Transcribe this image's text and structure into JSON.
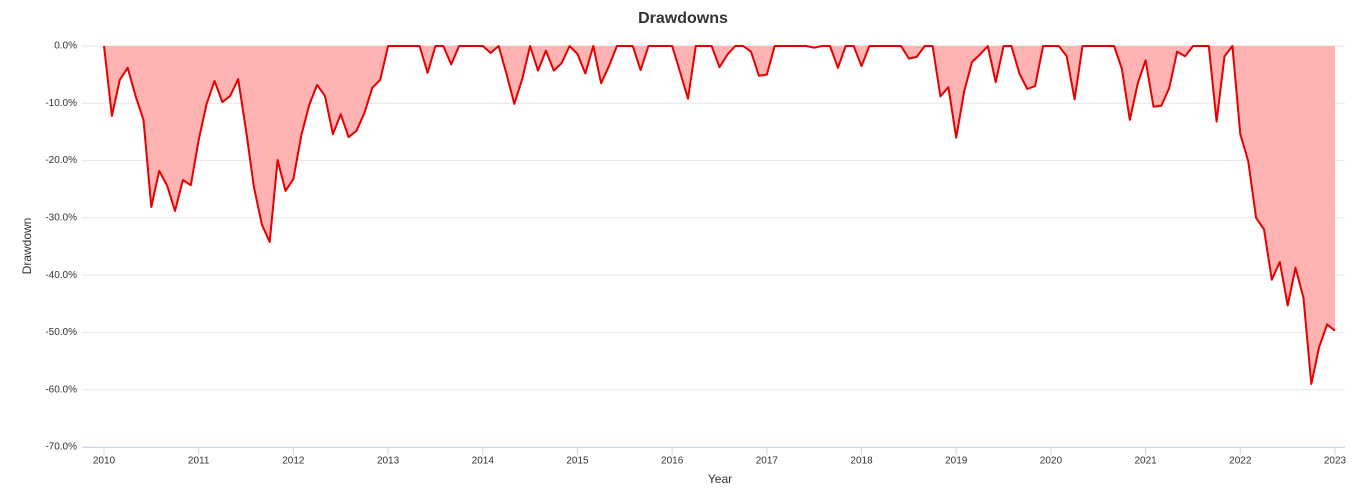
{
  "chart_data": {
    "type": "area",
    "title": "Drawdowns",
    "xlabel": "Year",
    "ylabel": "Drawdown",
    "line_color": "#e60000",
    "fill_color": "#ffb3b3",
    "grid": true,
    "xlim": [
      2010,
      2023
    ],
    "xticks": [
      2010,
      2011,
      2012,
      2013,
      2014,
      2015,
      2016,
      2017,
      2018,
      2019,
      2020,
      2021,
      2022,
      2023
    ],
    "ylim": [
      -70,
      0
    ],
    "yticks": [
      {
        "value": 0,
        "label": "0.0%"
      },
      {
        "value": -10,
        "label": "-10.0%"
      },
      {
        "value": -20,
        "label": "-20.0%"
      },
      {
        "value": -30,
        "label": "-30.0%"
      },
      {
        "value": -40,
        "label": "-40.0%"
      },
      {
        "value": -50,
        "label": "-50.0%"
      },
      {
        "value": -60,
        "label": "-60.0%"
      },
      {
        "value": -70,
        "label": "-70.0%"
      }
    ],
    "x": [
      2010,
      2010.083,
      2010.167,
      2010.25,
      2010.333,
      2010.417,
      2010.5,
      2010.583,
      2010.667,
      2010.75,
      2010.833,
      2010.917,
      2011,
      2011.083,
      2011.167,
      2011.25,
      2011.333,
      2011.417,
      2011.5,
      2011.583,
      2011.667,
      2011.75,
      2011.833,
      2011.917,
      2012,
      2012.083,
      2012.167,
      2012.25,
      2012.333,
      2012.417,
      2012.5,
      2012.583,
      2012.667,
      2012.75,
      2012.833,
      2012.917,
      2013,
      2013.083,
      2013.167,
      2013.25,
      2013.333,
      2013.417,
      2013.5,
      2013.583,
      2013.667,
      2013.75,
      2013.833,
      2013.917,
      2014,
      2014.083,
      2014.167,
      2014.25,
      2014.333,
      2014.417,
      2014.5,
      2014.583,
      2014.667,
      2014.75,
      2014.833,
      2014.917,
      2015,
      2015.083,
      2015.167,
      2015.25,
      2015.333,
      2015.417,
      2015.5,
      2015.583,
      2015.667,
      2015.75,
      2015.833,
      2015.917,
      2016,
      2016.083,
      2016.167,
      2016.25,
      2016.333,
      2016.417,
      2016.5,
      2016.583,
      2016.667,
      2016.75,
      2016.833,
      2016.917,
      2017,
      2017.083,
      2017.167,
      2017.25,
      2017.333,
      2017.417,
      2017.5,
      2017.583,
      2017.667,
      2017.75,
      2017.833,
      2017.917,
      2018,
      2018.083,
      2018.167,
      2018.25,
      2018.333,
      2018.417,
      2018.5,
      2018.583,
      2018.667,
      2018.75,
      2018.833,
      2018.917,
      2019,
      2019.083,
      2019.167,
      2019.25,
      2019.333,
      2019.417,
      2019.5,
      2019.583,
      2019.667,
      2019.75,
      2019.833,
      2019.917,
      2020,
      2020.083,
      2020.167,
      2020.25,
      2020.333,
      2020.417,
      2020.5,
      2020.583,
      2020.667,
      2020.75,
      2020.833,
      2020.917,
      2021,
      2021.083,
      2021.167,
      2021.25,
      2021.333,
      2021.417,
      2021.5,
      2021.583,
      2021.667,
      2021.75,
      2021.833,
      2021.917,
      2022,
      2022.083,
      2022.167,
      2022.25,
      2022.333,
      2022.417,
      2022.5,
      2022.583,
      2022.667,
      2022.75,
      2022.833,
      2022.917,
      2023
    ],
    "values": [
      0,
      -12.2,
      -5.9,
      -3.8,
      -8.7,
      -12.9,
      -28.1,
      -21.8,
      -24.4,
      -28.8,
      -23.4,
      -24.3,
      -16.4,
      -10.1,
      -6.1,
      -9.8,
      -8.7,
      -5.8,
      -14.7,
      -24.6,
      -31.2,
      -34.2,
      -19.9,
      -25.3,
      -23.2,
      -15.7,
      -10.3,
      -6.8,
      -8.7,
      -15.4,
      -11.9,
      -15.9,
      -14.8,
      -11.7,
      -7.3,
      -5.9,
      0,
      0,
      0,
      0,
      0,
      -4.7,
      0,
      0,
      -3.2,
      0,
      0,
      0,
      0,
      -1.2,
      0,
      -4.8,
      -10.1,
      -5.7,
      0,
      -4.3,
      -0.8,
      -4.3,
      -3.0,
      0,
      -1.4,
      -4.8,
      0,
      -6.5,
      -3.5,
      0,
      0,
      0,
      -4.2,
      0,
      0,
      0,
      0,
      -4.5,
      -9.2,
      0,
      0,
      0,
      -3.7,
      -1.5,
      0,
      0,
      -1.0,
      -5.2,
      -5.0,
      0,
      0,
      0,
      0,
      0,
      -0.3,
      0,
      0,
      -3.8,
      0,
      0,
      -3.5,
      0,
      0,
      0,
      0,
      0,
      -2.2,
      -1.9,
      0,
      0,
      -8.8,
      -7.2,
      -16.0,
      -8.0,
      -2.8,
      -1.5,
      0,
      -6.3,
      0,
      0,
      -4.8,
      -7.5,
      -7.0,
      0,
      0,
      0,
      -1.8,
      -9.3,
      0,
      0,
      0,
      0,
      0,
      -4.0,
      -12.9,
      -6.5,
      -2.5,
      -10.6,
      -10.4,
      -7.3,
      -1.0,
      -1.8,
      0,
      0,
      0,
      -13.2,
      -1.8,
      0,
      -15.4,
      -20.1,
      -30.0,
      -32.0,
      -40.8,
      -37.7,
      -45.3,
      -38.7,
      -44.0,
      -59.0,
      -52.5,
      -48.6,
      -49.7
    ]
  }
}
